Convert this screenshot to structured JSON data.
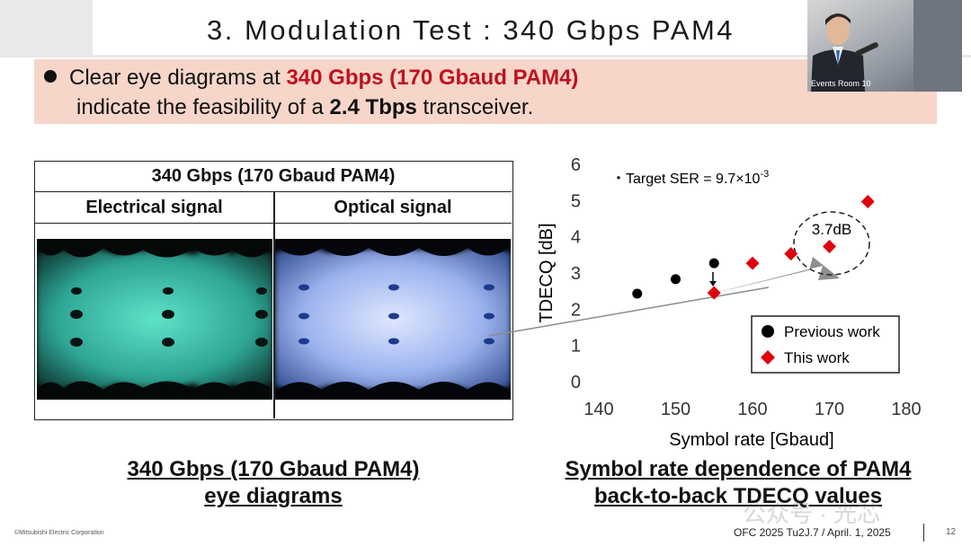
{
  "slide": {
    "title": "3. Modulation Test : 340 Gbps PAM4",
    "bullet": {
      "line1_prefix": "Clear eye diagrams at ",
      "line1_highlight": "340 Gbps (170 Gbaud PAM4)",
      "line2_prefix": "indicate the feasibility of a ",
      "line2_bold": "2.4 Tbps",
      "line2_suffix": " transceiver."
    },
    "video_overlay": {
      "label": "Events Room 10"
    },
    "eye_table": {
      "title": "340 Gbps (170 Gbaud PAM4)",
      "col_electrical": "Electrical signal",
      "col_optical": "Optical signal"
    },
    "caption_left": {
      "line1": "340 Gbps (170 Gbaud PAM4)",
      "line2": "eye diagrams"
    },
    "caption_right": {
      "line1": "Symbol rate dependence of PAM4",
      "line2": "back-to-back TDECQ values"
    },
    "footer": {
      "copyright": "©Mitsubishi Electric Corporation",
      "conference": "OFC 2025 Tu2J.7 / April. 1, 2025",
      "page": "12"
    },
    "watermark": "公众号 · 光芯"
  },
  "chart_data": {
    "type": "scatter",
    "xlabel": "Symbol rate [Gbaud]",
    "ylabel": "TDECQ [dB]",
    "xlim": [
      140,
      180
    ],
    "ylim": [
      0,
      6
    ],
    "x_ticks": [
      "140",
      "150",
      "160",
      "170",
      "180"
    ],
    "y_ticks": [
      "0",
      "1",
      "2",
      "3",
      "4",
      "5",
      "6"
    ],
    "annotation_ser_prefix": "・Target SER = 9.7×10",
    "annotation_ser_exp": "-3",
    "annotation_gain": "3.7dB",
    "legend_placement": "bottom-right",
    "series": [
      {
        "name": "Previous work",
        "marker": "circle",
        "color": "#000000",
        "points": [
          [
            145,
            2.43
          ],
          [
            150,
            2.83
          ],
          [
            155,
            3.27
          ]
        ]
      },
      {
        "name": "This work",
        "marker": "diamond",
        "color": "#e0000d",
        "points": [
          [
            155,
            2.45
          ],
          [
            160,
            3.27
          ],
          [
            165,
            3.53
          ],
          [
            170,
            3.73
          ],
          [
            175,
            4.97
          ]
        ]
      }
    ]
  }
}
